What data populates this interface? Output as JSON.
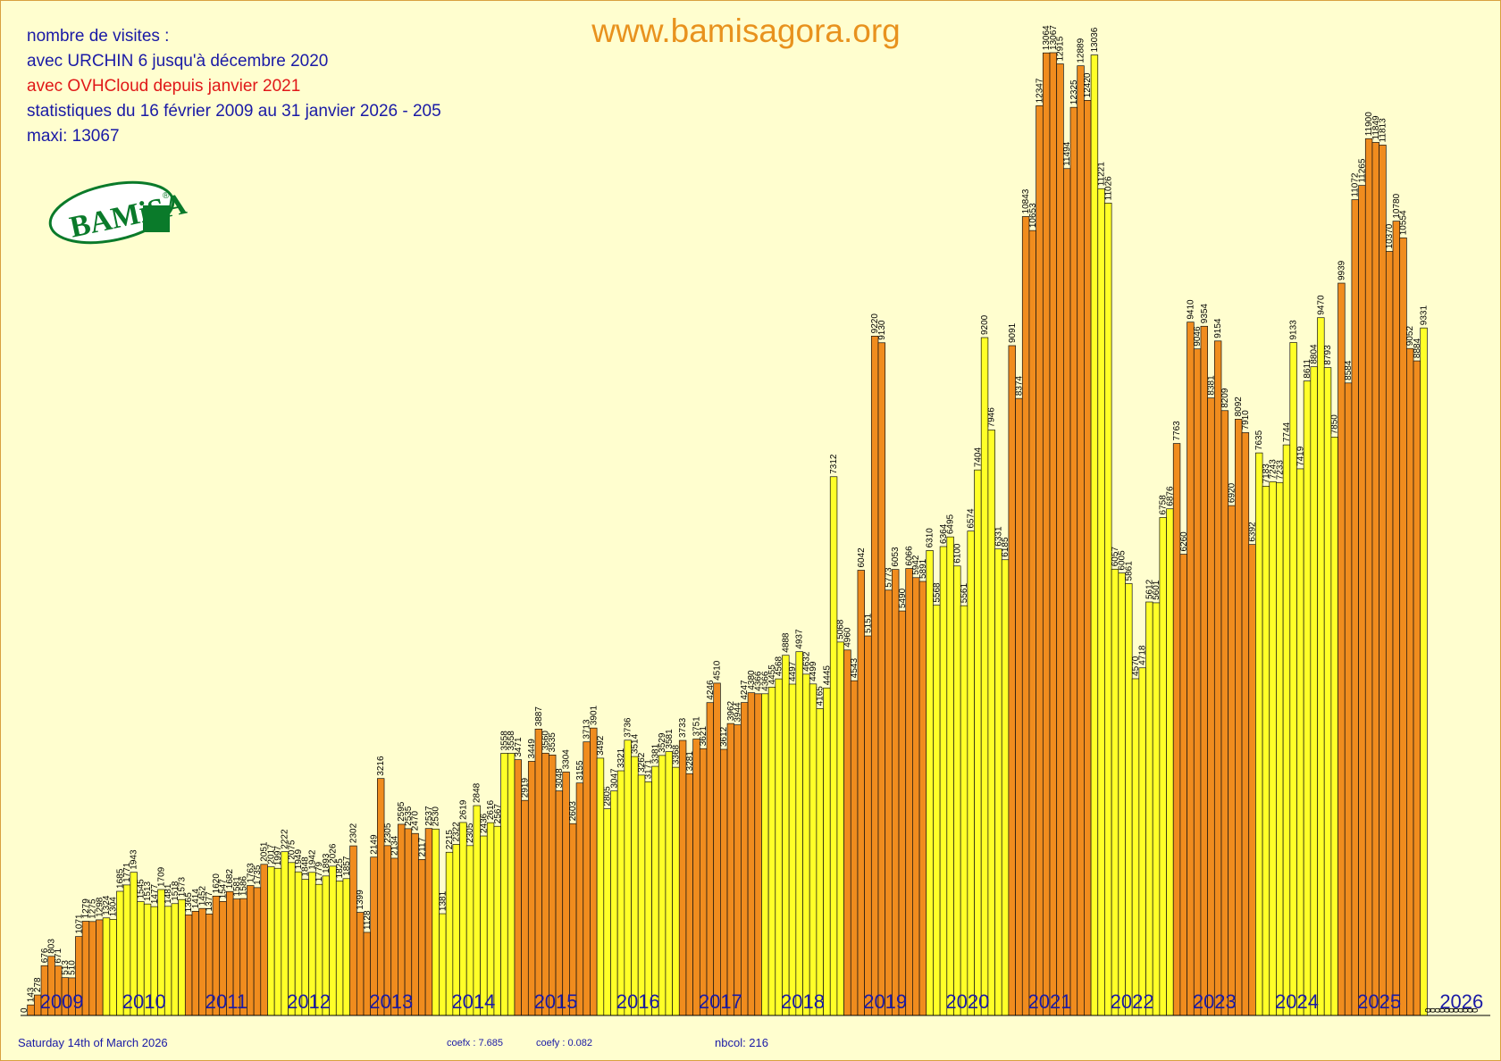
{
  "header": {
    "site": "www.bamisagora.org",
    "line1": "nombre de visites :",
    "line2": "avec URCHIN 6 jusqu'à décembre 2020",
    "line3": "avec OVHCloud depuis janvier 2021",
    "line4": "statistiques du 16 février 2009 au 31 janvier 2026   -  205",
    "line5": "maxi: 13067"
  },
  "logo": {
    "text": "BAMiSA",
    "mark": "®",
    "colors": {
      "green": "#0a7a2a"
    }
  },
  "footer": {
    "date": "Saturday 14th of March 2026",
    "coefx": "coefx : 7.685",
    "coefy": "coefy : 0.082",
    "nbcol": "nbcol: 216"
  },
  "colors": {
    "orange": "#f08c1e",
    "yellow": "#ffff28",
    "bar_edge": "#111111",
    "year_label": "#1a1aa6",
    "background": "#fffecf"
  },
  "chart_data": {
    "type": "bar",
    "ylim": [
      0,
      13100
    ],
    "grid": false,
    "legend": "none",
    "year_labels": [
      "2009",
      "2010",
      "2011",
      "2012",
      "2013",
      "2014",
      "2015",
      "2016",
      "2017",
      "2018",
      "2019",
      "2020",
      "2021",
      "2022",
      "2023",
      "2024",
      "2025",
      "2026"
    ],
    "years": [
      {
        "year": "2009",
        "color": "orange",
        "values": [
          0,
          143,
          278,
          676,
          803,
          671,
          513,
          510,
          1071,
          1279,
          1275,
          1298
        ]
      },
      {
        "year": "2010",
        "color": "yellow",
        "values": [
          1324,
          1304,
          1685,
          1771,
          1943,
          1545,
          1513,
          1477,
          1709,
          1481,
          1518,
          1573
        ]
      },
      {
        "year": "2011",
        "color": "orange",
        "values": [
          1365,
          1414,
          1452,
          1377,
          1620,
          1547,
          1682,
          1581,
          1586,
          1763,
          1735,
          2051
        ]
      },
      {
        "year": "2012",
        "color": "yellow",
        "values": [
          2017,
          1997,
          2222,
          2075,
          1949,
          1848,
          1942,
          1779,
          1893,
          2026,
          1825,
          1857
        ]
      },
      {
        "year": "2013",
        "color": "orange",
        "values": [
          2302,
          1399,
          1128,
          2149,
          3216,
          2305,
          2134,
          2595,
          2535,
          2470,
          2117,
          2537
        ]
      },
      {
        "year": "2014",
        "color": "yellow",
        "values": [
          2530,
          1381,
          2215,
          2322,
          2619,
          2305,
          2848,
          2436,
          2616,
          2567,
          3558,
          3558
        ]
      },
      {
        "year": "2015",
        "color": "orange",
        "values": [
          3471,
          2919,
          3449,
          3887,
          3560,
          3535,
          3048,
          3304,
          2603,
          3155,
          3713,
          3901
        ]
      },
      {
        "year": "2016",
        "color": "yellow",
        "values": [
          3492,
          2805,
          3047,
          3321,
          3736,
          3514,
          3262,
          3171,
          3381,
          3529,
          3581,
          3368
        ]
      },
      {
        "year": "2017",
        "color": "orange",
        "values": [
          3733,
          3281,
          3751,
          3621,
          4246,
          4510,
          3612,
          3962,
          3944,
          4247,
          4380,
          4366
        ]
      },
      {
        "year": "2018",
        "color": "yellow",
        "values": [
          4366,
          4455,
          4568,
          4888,
          4497,
          4937,
          4632,
          4499,
          4165,
          4445,
          7312,
          5068
        ]
      },
      {
        "year": "2019",
        "color": "orange",
        "values": [
          4960,
          4543,
          6042,
          5151,
          9220,
          9130,
          5773,
          6053,
          5490,
          6066,
          5942,
          5891
        ]
      },
      {
        "year": "2020",
        "color": "yellow",
        "values": [
          6310,
          5568,
          6364,
          6495,
          6100,
          5561,
          6574,
          7404,
          9200,
          7946,
          6331,
          6185
        ]
      },
      {
        "year": "2021",
        "color": "orange",
        "values": [
          9091,
          8374,
          10843,
          10653,
          12347,
          13064,
          13067,
          12915,
          11494,
          12325,
          12889,
          12420
        ]
      },
      {
        "year": "2022",
        "color": "yellow",
        "values": [
          13036,
          11221,
          11026,
          6057,
          6005,
          5861,
          4570,
          4718,
          5612,
          5601,
          6758,
          6876
        ]
      },
      {
        "year": "2023",
        "color": "orange",
        "values": [
          7763,
          6260,
          9410,
          9046,
          9354,
          8381,
          9154,
          8209,
          6920,
          8092,
          7910,
          6392
        ]
      },
      {
        "year": "2024",
        "color": "yellow",
        "values": [
          7635,
          7183,
          7243,
          7233,
          7744,
          9133,
          7419,
          8611,
          8804,
          9470,
          8793,
          7850
        ]
      },
      {
        "year": "2025",
        "color": "orange",
        "values": [
          9939,
          8584,
          11072,
          11265,
          11900,
          11849,
          11813,
          10370,
          10780,
          10554,
          9052,
          8884
        ]
      },
      {
        "year": "2026",
        "color": "yellow",
        "values": [
          9331
        ]
      }
    ],
    "trailing_zero_labels": [
      "0",
      "0",
      "0",
      "0",
      "0",
      "0",
      "0",
      "0",
      "0",
      "0",
      "0"
    ]
  }
}
